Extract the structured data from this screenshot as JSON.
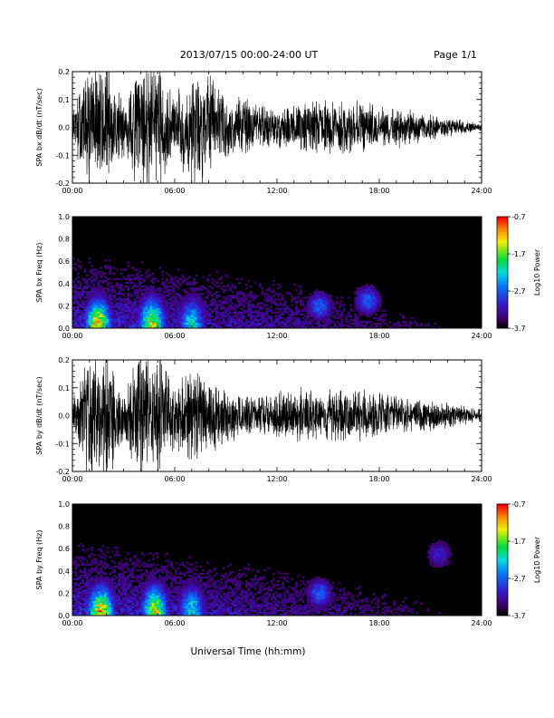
{
  "header": {
    "title": "2013/07/15  00:00-24:00 UT",
    "page": "Page 1/1"
  },
  "chart_data": [
    {
      "type": "line",
      "ylabel": "SPA bx dB/dt (nT/sec)",
      "ylim": [
        -0.2,
        0.2
      ],
      "yticks": [
        "-0.2",
        "-0.1",
        "0.0",
        "0.1",
        "0.2"
      ],
      "xlim": [
        "00:00",
        "24:00"
      ],
      "xticks": [
        "00:00",
        "06:00",
        "12:00",
        "18:00",
        "24:00"
      ],
      "series": [
        {
          "x": [
            "00:00",
            "01:00",
            "02:00",
            "03:00",
            "04:00",
            "05:00",
            "06:00",
            "07:00",
            "08:00",
            "09:00",
            "10:00",
            "11:00",
            "12:00",
            "13:00",
            "14:00",
            "15:00",
            "16:00",
            "17:00",
            "18:00",
            "19:00",
            "20:00",
            "21:00",
            "22:00",
            "23:00",
            "24:00"
          ],
          "amplitude": [
            0.05,
            0.2,
            0.2,
            0.08,
            0.2,
            0.2,
            0.1,
            0.2,
            0.16,
            0.1,
            0.09,
            0.08,
            0.06,
            0.07,
            0.08,
            0.08,
            0.09,
            0.08,
            0.06,
            0.06,
            0.05,
            0.04,
            0.03,
            0.02,
            0.01
          ]
        }
      ]
    },
    {
      "type": "heatmap",
      "ylabel": "SPA bx Freq (Hz)",
      "ylim": [
        0.0,
        1.0
      ],
      "yticks": [
        "0.0",
        "0.2",
        "0.4",
        "0.6",
        "0.8",
        "1.0"
      ],
      "xlim": [
        "00:00",
        "24:00"
      ],
      "xticks": [
        "00:00",
        "06:00",
        "12:00",
        "18:00",
        "24:00"
      ],
      "colorbar": {
        "label": "Log10 Power",
        "range": [
          -3.7,
          -0.7
        ],
        "ticks": [
          "-0.7",
          "-1.7",
          "-2.7",
          "-3.7"
        ]
      },
      "hotspots": [
        {
          "time": "01:30",
          "freq": 0.02,
          "log_power": -0.9
        },
        {
          "time": "04:40",
          "freq": 0.03,
          "log_power": -1.2
        },
        {
          "time": "07:00",
          "freq": 0.03,
          "log_power": -2.0
        },
        {
          "time": "14:30",
          "freq": 0.2,
          "log_power": -2.6
        },
        {
          "time": "17:20",
          "freq": 0.25,
          "log_power": -2.6
        }
      ]
    },
    {
      "type": "line",
      "ylabel": "SPA by dB/dt (nT/sec)",
      "ylim": [
        -0.2,
        0.2
      ],
      "yticks": [
        "-0.2",
        "-0.1",
        "0.0",
        "0.1",
        "0.2"
      ],
      "xlim": [
        "00:00",
        "24:00"
      ],
      "xticks": [
        "00:00",
        "06:00",
        "12:00",
        "18:00",
        "24:00"
      ],
      "series": [
        {
          "x": [
            "00:00",
            "01:00",
            "02:00",
            "03:00",
            "04:00",
            "05:00",
            "06:00",
            "07:00",
            "08:00",
            "09:00",
            "10:00",
            "11:00",
            "12:00",
            "13:00",
            "14:00",
            "15:00",
            "16:00",
            "17:00",
            "18:00",
            "19:00",
            "20:00",
            "21:00",
            "22:00",
            "23:00",
            "24:00"
          ],
          "amplitude": [
            0.05,
            0.2,
            0.2,
            0.08,
            0.2,
            0.2,
            0.1,
            0.14,
            0.12,
            0.08,
            0.07,
            0.06,
            0.07,
            0.08,
            0.08,
            0.08,
            0.08,
            0.08,
            0.07,
            0.06,
            0.05,
            0.05,
            0.04,
            0.03,
            0.02
          ]
        }
      ]
    },
    {
      "type": "heatmap",
      "ylabel": "SPA by Freq (Hz)",
      "ylim": [
        0.0,
        1.0
      ],
      "yticks": [
        "0.0",
        "0.2",
        "0.4",
        "0.6",
        "0.8",
        "1.0"
      ],
      "xlim": [
        "00:00",
        "24:00"
      ],
      "xticks": [
        "00:00",
        "06:00",
        "12:00",
        "18:00",
        "24:00"
      ],
      "colorbar": {
        "label": "Log10 Power",
        "range": [
          -3.7,
          -0.7
        ],
        "ticks": [
          "-0.7",
          "-1.7",
          "-2.7",
          "-3.7"
        ]
      },
      "hotspots": [
        {
          "time": "01:40",
          "freq": 0.02,
          "log_power": -0.9
        },
        {
          "time": "04:50",
          "freq": 0.03,
          "log_power": -1.2
        },
        {
          "time": "07:00",
          "freq": 0.03,
          "log_power": -2.0
        },
        {
          "time": "14:30",
          "freq": 0.2,
          "log_power": -2.6
        },
        {
          "time": "21:30",
          "freq": 0.55,
          "log_power": -3.0
        }
      ]
    }
  ],
  "xaxis_title": "Universal Time (hh:mm)",
  "colors": {
    "trace": "#000000",
    "background": "#ffffff",
    "spectrogram_floor": "#000000"
  }
}
